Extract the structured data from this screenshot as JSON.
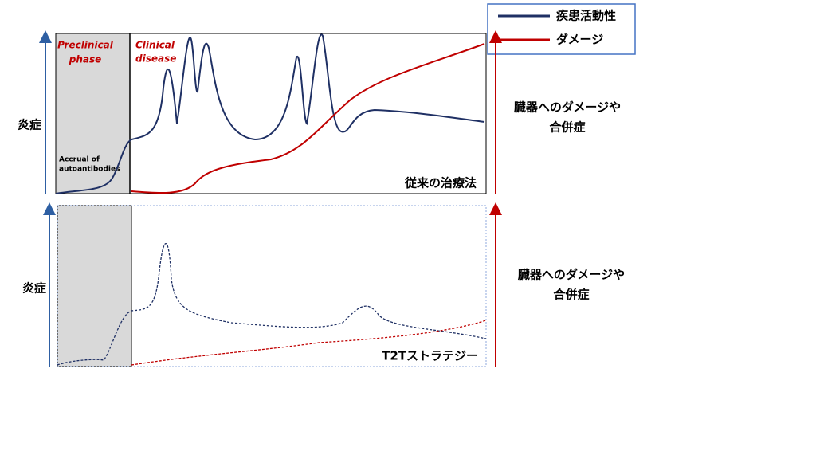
{
  "legend": {
    "items": [
      "疾患活動性",
      "ダメージ"
    ]
  },
  "top_panel": {
    "preclinical": [
      "Preclinical",
      "phase"
    ],
    "clinical": [
      "Clinical",
      "disease"
    ],
    "accrual": [
      "Accrual of",
      "autoantibodies"
    ],
    "left_axis": "炎症",
    "right_axis": [
      "臓器へのダメージや",
      "合併症"
    ],
    "label": "従来の治療法"
  },
  "bottom_panel": {
    "left_axis": "炎症",
    "right_axis": [
      "臓器へのダメージや",
      "合併症"
    ],
    "label": "T2Tストラテジー"
  }
}
